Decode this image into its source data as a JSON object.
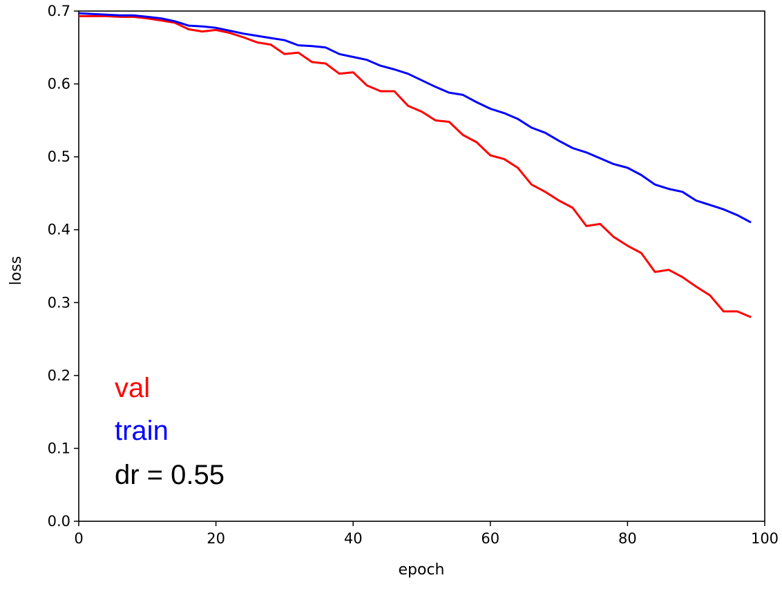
{
  "chart_data": {
    "type": "line",
    "xlabel": "epoch",
    "ylabel": "loss",
    "xlim": [
      0,
      100
    ],
    "ylim": [
      0.0,
      0.7
    ],
    "xticks": [
      "0",
      "20",
      "40",
      "60",
      "80",
      "100"
    ],
    "yticks": [
      "0.0",
      "0.1",
      "0.2",
      "0.3",
      "0.4",
      "0.5",
      "0.6",
      "0.7"
    ],
    "grid": false,
    "annotations": [
      {
        "text": "val",
        "color": "#ff0000"
      },
      {
        "text": "train",
        "color": "#0000ff"
      },
      {
        "text": "dr = 0.55",
        "color": "#000000"
      }
    ],
    "series": [
      {
        "color": "#ff0000",
        "x": [
          0,
          2,
          4,
          6,
          8,
          10,
          12,
          14,
          16,
          18,
          20,
          22,
          24,
          26,
          28,
          30,
          32,
          34,
          36,
          38,
          40,
          42,
          44,
          46,
          48,
          50,
          52,
          54,
          56,
          58,
          60,
          62,
          64,
          66,
          68,
          70,
          72,
          74,
          76,
          78,
          80,
          82,
          84,
          86,
          88,
          90,
          92,
          94,
          96,
          98
        ],
        "y": [
          0.693,
          0.693,
          0.693,
          0.692,
          0.692,
          0.69,
          0.687,
          0.684,
          0.675,
          0.672,
          0.674,
          0.67,
          0.664,
          0.657,
          0.654,
          0.641,
          0.643,
          0.63,
          0.628,
          0.614,
          0.616,
          0.598,
          0.59,
          0.59,
          0.57,
          0.562,
          0.55,
          0.548,
          0.53,
          0.52,
          0.502,
          0.497,
          0.485,
          0.462,
          0.452,
          0.44,
          0.43,
          0.405,
          0.408,
          0.39,
          0.378,
          0.368,
          0.342,
          0.345,
          0.335,
          0.322,
          0.31,
          0.288,
          0.288,
          0.28
        ]
      },
      {
        "color": "#0000ff",
        "x": [
          0,
          2,
          4,
          6,
          8,
          10,
          12,
          14,
          16,
          18,
          20,
          22,
          24,
          26,
          28,
          30,
          32,
          34,
          36,
          38,
          40,
          42,
          44,
          46,
          48,
          50,
          52,
          54,
          56,
          58,
          60,
          62,
          64,
          66,
          68,
          70,
          72,
          74,
          76,
          78,
          80,
          82,
          84,
          86,
          88,
          90,
          92,
          94,
          96,
          98
        ],
        "y": [
          0.697,
          0.696,
          0.695,
          0.694,
          0.694,
          0.692,
          0.69,
          0.686,
          0.68,
          0.679,
          0.677,
          0.673,
          0.669,
          0.666,
          0.663,
          0.66,
          0.653,
          0.652,
          0.65,
          0.641,
          0.637,
          0.633,
          0.625,
          0.62,
          0.614,
          0.605,
          0.596,
          0.588,
          0.585,
          0.575,
          0.566,
          0.56,
          0.552,
          0.54,
          0.533,
          0.522,
          0.512,
          0.506,
          0.498,
          0.49,
          0.485,
          0.475,
          0.462,
          0.456,
          0.452,
          0.44,
          0.434,
          0.428,
          0.42,
          0.41
        ]
      }
    ]
  }
}
